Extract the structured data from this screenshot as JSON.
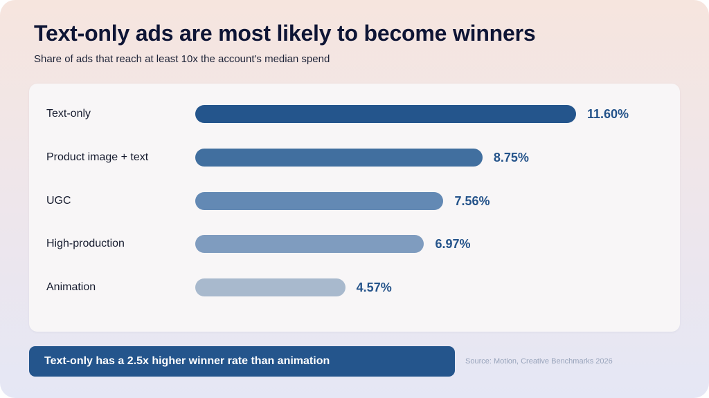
{
  "chart_data": {
    "type": "bar",
    "orientation": "horizontal",
    "title": "Text-only ads are most likely to become winners",
    "subtitle": "Share of ads that reach at least 10x the account's median spend",
    "categories": [
      "Text-only",
      "Product image + text",
      "UGC",
      "High-production",
      "Animation"
    ],
    "values": [
      11.6,
      8.75,
      7.56,
      6.97,
      4.57
    ],
    "value_labels": [
      "11.60%",
      "8.75%",
      "7.56%",
      "6.97%",
      "4.57%"
    ],
    "bar_colors": [
      "#24558c",
      "#416f9f",
      "#6389b4",
      "#7f9cbf",
      "#a8b9cd"
    ],
    "value_color": "#24538a",
    "xlim": [
      0,
      11.6
    ],
    "grid": false,
    "legend": "none"
  },
  "callout": {
    "text": "Text-only has a 2.5x higher winner rate than animation"
  },
  "source": "Source: Motion, Creative Benchmarks 2026"
}
